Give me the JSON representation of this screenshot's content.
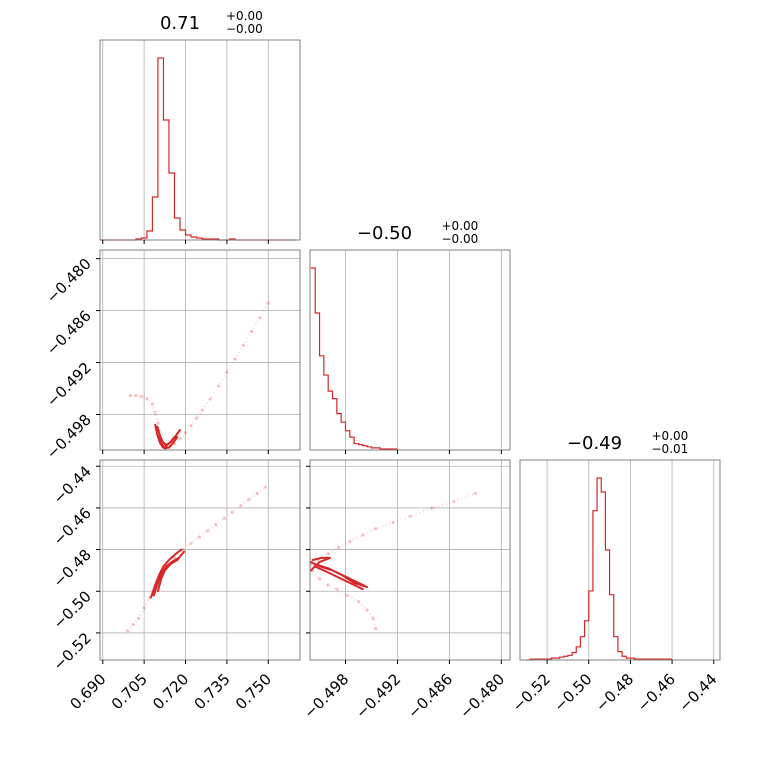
{
  "figure_type": "corner plot",
  "colors": {
    "line": "#d62728",
    "grid": "#b0b0b0",
    "frame": "#808080"
  },
  "chart_data": [
    {
      "panel": "hist_p0",
      "type": "bar",
      "title": {
        "value": "0.71",
        "plus": "+0.00",
        "minus": "−0.00"
      },
      "x_ticks": [
        "0.690",
        "0.705",
        "0.720",
        "0.735",
        "0.750"
      ],
      "xlim": [
        0.689,
        0.7615
      ],
      "bin_edges": [
        0.688,
        0.69,
        0.692,
        0.694,
        0.696,
        0.698,
        0.7,
        0.702,
        0.704,
        0.706,
        0.708,
        0.71,
        0.712,
        0.714,
        0.716,
        0.718,
        0.72,
        0.722,
        0.724,
        0.726,
        0.728,
        0.73,
        0.732,
        0.734,
        0.736,
        0.738,
        0.74,
        0.742,
        0.744,
        0.746,
        0.748,
        0.75,
        0.752,
        0.754,
        0.756,
        0.758,
        0.76
      ],
      "counts": [
        0,
        0,
        0,
        0,
        0,
        0,
        0,
        1,
        2,
        9,
        43,
        182,
        120,
        67,
        22,
        10,
        5,
        3,
        2,
        1,
        1,
        1,
        0,
        0,
        1,
        0,
        0,
        0,
        0,
        0,
        0,
        0,
        0,
        0,
        0,
        0
      ]
    },
    {
      "panel": "hist_p1",
      "type": "bar",
      "title": {
        "value": "−0.50",
        "plus": "+0.00",
        "minus": "−0.00"
      },
      "x_ticks": [
        "−0.498",
        "−0.492",
        "−0.486",
        "−0.480"
      ],
      "xlim": [
        -0.5021,
        -0.479
      ],
      "bin_edges": [
        -0.502,
        -0.5015,
        -0.501,
        -0.5005,
        -0.5,
        -0.4995,
        -0.499,
        -0.4985,
        -0.498,
        -0.4975,
        -0.497,
        -0.4965,
        -0.496,
        -0.4955,
        -0.495,
        -0.4945,
        -0.494,
        -0.4935,
        -0.493,
        -0.4925,
        -0.492
      ],
      "counts": [
        170,
        128,
        88,
        70,
        55,
        48,
        34,
        26,
        18,
        12,
        6,
        5,
        4,
        3,
        2,
        2,
        1,
        1,
        1,
        1
      ]
    },
    {
      "panel": "hist_p2",
      "type": "bar",
      "title": {
        "value": "−0.49",
        "plus": "+0.00",
        "minus": "−0.01"
      },
      "x_ticks": [
        "−0.52",
        "−0.50",
        "−0.48",
        "−0.46",
        "−0.44"
      ],
      "xlim": [
        -0.533,
        -0.437
      ],
      "bin_edges": [
        -0.53,
        -0.528,
        -0.526,
        -0.524,
        -0.522,
        -0.52,
        -0.518,
        -0.516,
        -0.514,
        -0.512,
        -0.51,
        -0.508,
        -0.506,
        -0.504,
        -0.502,
        -0.5,
        -0.498,
        -0.496,
        -0.494,
        -0.492,
        -0.49,
        -0.488,
        -0.486,
        -0.484,
        -0.482,
        -0.48,
        -0.478,
        -0.476,
        -0.474,
        -0.472,
        -0.47,
        -0.468,
        -0.466,
        -0.464,
        -0.462,
        -0.46
      ],
      "counts": [
        0,
        1,
        1,
        1,
        1,
        1,
        2,
        2,
        3,
        4,
        5,
        8,
        14,
        25,
        42,
        74,
        160,
        195,
        180,
        118,
        70,
        25,
        9,
        4,
        2,
        2,
        1,
        1,
        1,
        1,
        1,
        1,
        1,
        1,
        1
      ]
    },
    {
      "panel": "p0_vs_p1",
      "type": "scatter",
      "y_ticks": [
        "−0.480",
        "−0.486",
        "−0.492",
        "−0.498"
      ],
      "xlim": [
        0.689,
        0.7615
      ],
      "ylim": [
        -0.5021,
        -0.479
      ],
      "points": [
        [
          0.7,
          -0.4958
        ],
        [
          0.702,
          -0.4958
        ],
        [
          0.704,
          -0.4959
        ],
        [
          0.706,
          -0.4962
        ],
        [
          0.708,
          -0.4968
        ],
        [
          0.709,
          -0.4978
        ],
        [
          0.71,
          -0.499
        ],
        [
          0.7105,
          -0.5
        ],
        [
          0.711,
          -0.5008
        ],
        [
          0.712,
          -0.5014
        ],
        [
          0.713,
          -0.5018
        ],
        [
          0.714,
          -0.5018
        ],
        [
          0.716,
          -0.5014
        ],
        [
          0.718,
          -0.5008
        ],
        [
          0.72,
          -0.5001
        ],
        [
          0.722,
          -0.4993
        ],
        [
          0.724,
          -0.4984
        ],
        [
          0.726,
          -0.4975
        ],
        [
          0.729,
          -0.4962
        ],
        [
          0.732,
          -0.4947
        ],
        [
          0.735,
          -0.4931
        ],
        [
          0.738,
          -0.4916
        ],
        [
          0.741,
          -0.49
        ],
        [
          0.744,
          -0.4884
        ],
        [
          0.747,
          -0.4868
        ],
        [
          0.75,
          -0.4851
        ]
      ],
      "contours": [
        [
          [
            0.709,
            -0.4992
          ],
          [
            0.7098,
            -0.5004
          ],
          [
            0.7108,
            -0.5013
          ],
          [
            0.7118,
            -0.5018
          ],
          [
            0.7128,
            -0.5019
          ],
          [
            0.7128,
            -0.5015
          ],
          [
            0.7116,
            -0.5011
          ],
          [
            0.7106,
            -0.5003
          ],
          [
            0.7098,
            -0.4994
          ]
        ],
        [
          [
            0.7113,
            -0.5014
          ],
          [
            0.7125,
            -0.5019
          ],
          [
            0.714,
            -0.5018
          ],
          [
            0.7155,
            -0.5013
          ],
          [
            0.717,
            -0.5006
          ],
          [
            0.716,
            -0.5006
          ],
          [
            0.7145,
            -0.5012
          ],
          [
            0.713,
            -0.5016
          ]
        ],
        [
          [
            0.7102,
            -0.5005
          ],
          [
            0.7115,
            -0.5012
          ],
          [
            0.7132,
            -0.5015
          ],
          [
            0.715,
            -0.5011
          ],
          [
            0.7168,
            -0.5003
          ],
          [
            0.718,
            -0.4998
          ]
        ]
      ]
    },
    {
      "panel": "p0_vs_p2",
      "type": "scatter",
      "y_ticks": [
        "−0.44",
        "−0.46",
        "−0.48",
        "−0.50",
        "−0.52"
      ],
      "xlim": [
        0.689,
        0.7615
      ],
      "ylim": [
        -0.533,
        -0.437
      ],
      "points": [
        [
          0.699,
          -0.519
        ],
        [
          0.701,
          -0.516
        ],
        [
          0.703,
          -0.513
        ],
        [
          0.705,
          -0.508
        ],
        [
          0.707,
          -0.503
        ],
        [
          0.709,
          -0.497
        ],
        [
          0.711,
          -0.492
        ],
        [
          0.713,
          -0.488
        ],
        [
          0.716,
          -0.484
        ],
        [
          0.719,
          -0.48
        ],
        [
          0.722,
          -0.477
        ],
        [
          0.725,
          -0.474
        ],
        [
          0.728,
          -0.471
        ],
        [
          0.731,
          -0.468
        ],
        [
          0.734,
          -0.465
        ],
        [
          0.737,
          -0.462
        ],
        [
          0.74,
          -0.459
        ],
        [
          0.743,
          -0.456
        ],
        [
          0.746,
          -0.453
        ],
        [
          0.749,
          -0.45
        ]
      ],
      "contours": [
        [
          [
            0.7075,
            -0.503
          ],
          [
            0.709,
            -0.497
          ],
          [
            0.7105,
            -0.492
          ],
          [
            0.712,
            -0.488
          ],
          [
            0.714,
            -0.485
          ],
          [
            0.7165,
            -0.482
          ],
          [
            0.7185,
            -0.48
          ]
        ],
        [
          [
            0.7085,
            -0.502
          ],
          [
            0.71,
            -0.496
          ],
          [
            0.7115,
            -0.491
          ],
          [
            0.713,
            -0.488
          ],
          [
            0.715,
            -0.486
          ],
          [
            0.7175,
            -0.484
          ]
        ],
        [
          [
            0.71,
            -0.5
          ],
          [
            0.7112,
            -0.494
          ],
          [
            0.7125,
            -0.49
          ],
          [
            0.7145,
            -0.487
          ],
          [
            0.717,
            -0.485
          ],
          [
            0.7195,
            -0.481
          ]
        ]
      ]
    },
    {
      "panel": "p1_vs_p2",
      "type": "scatter",
      "xlim": [
        -0.5021,
        -0.479
      ],
      "ylim": [
        -0.533,
        -0.437
      ],
      "points": [
        [
          -0.4945,
          -0.518
        ],
        [
          -0.4948,
          -0.513
        ],
        [
          -0.4955,
          -0.509
        ],
        [
          -0.4965,
          -0.505
        ],
        [
          -0.4978,
          -0.502
        ],
        [
          -0.499,
          -0.499
        ],
        [
          -0.5,
          -0.497
        ],
        [
          -0.501,
          -0.494
        ],
        [
          -0.5018,
          -0.49
        ],
        [
          -0.502,
          -0.487
        ],
        [
          -0.5012,
          -0.485
        ],
        [
          -0.5,
          -0.482
        ],
        [
          -0.4988,
          -0.479
        ],
        [
          -0.4975,
          -0.476
        ],
        [
          -0.496,
          -0.473
        ],
        [
          -0.4945,
          -0.47
        ],
        [
          -0.4925,
          -0.467
        ],
        [
          -0.4905,
          -0.464
        ],
        [
          -0.488,
          -0.46
        ],
        [
          -0.4855,
          -0.457
        ],
        [
          -0.483,
          -0.453
        ]
      ],
      "contours": [
        [
          [
            -0.502,
            -0.486
          ],
          [
            -0.501,
            -0.488
          ],
          [
            -0.4995,
            -0.49
          ],
          [
            -0.498,
            -0.493
          ],
          [
            -0.4965,
            -0.496
          ],
          [
            -0.4955,
            -0.498
          ],
          [
            -0.497,
            -0.496
          ],
          [
            -0.4985,
            -0.492
          ],
          [
            -0.5,
            -0.489
          ],
          [
            -0.5015,
            -0.487
          ]
        ],
        [
          [
            -0.502,
            -0.49
          ],
          [
            -0.501,
            -0.486
          ],
          [
            -0.4998,
            -0.484
          ],
          [
            -0.5008,
            -0.484
          ],
          [
            -0.5018,
            -0.485
          ]
        ],
        [
          [
            -0.5016,
            -0.488
          ],
          [
            -0.5,
            -0.491
          ],
          [
            -0.4985,
            -0.494
          ],
          [
            -0.497,
            -0.497
          ],
          [
            -0.496,
            -0.499
          ]
        ]
      ]
    }
  ]
}
